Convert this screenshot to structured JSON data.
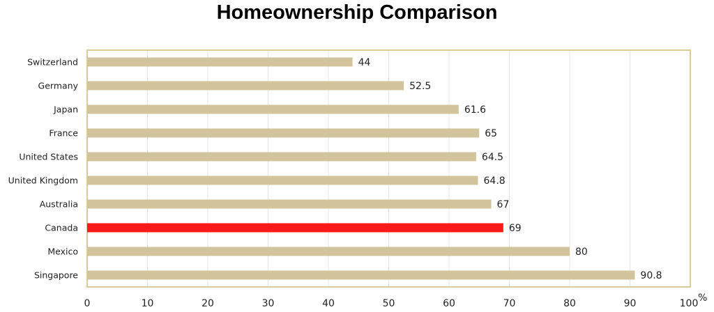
{
  "chart_data": {
    "type": "bar",
    "orientation": "horizontal",
    "title": "Homeownership Comparison",
    "categories": [
      "Switzerland",
      "Germany",
      "Japan",
      "France",
      "United States",
      "United Kingdom",
      "Australia",
      "Canada",
      "Mexico",
      "Singapore"
    ],
    "values": [
      44,
      52.5,
      61.6,
      65,
      64.5,
      64.8,
      67,
      69,
      80,
      90.8
    ],
    "value_labels": [
      "44",
      "52.5",
      "61.6",
      "65",
      "64.5",
      "64.8",
      "67",
      "69",
      "80",
      "90.8"
    ],
    "xlim": [
      0,
      100
    ],
    "x_ticks": [
      "0",
      "10",
      "20",
      "30",
      "40",
      "50",
      "60",
      "70",
      "80",
      "90",
      "100"
    ],
    "x_unit": "%",
    "grid": true,
    "colors": {
      "bar": "#d2c59e",
      "highlight": "#ff1a1a",
      "frame": "#d8cc9e",
      "grid": "#e4e4e4"
    },
    "highlight_category": "Canada"
  }
}
